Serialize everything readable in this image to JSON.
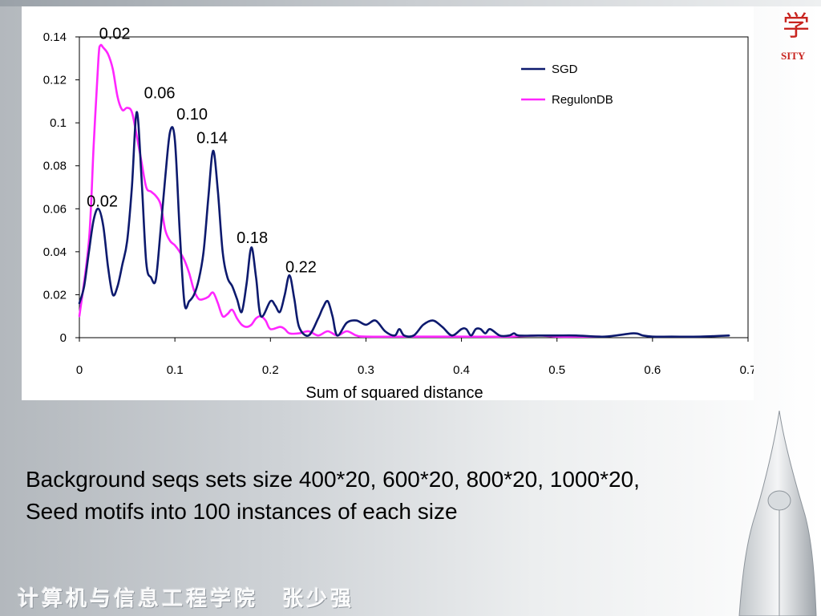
{
  "slide": {
    "body_lines": [
      "Background seqs sets size 400*20, 600*20, 800*20, 1000*20,",
      "Seed motifs into 100 instances of each size"
    ],
    "footer": "计算机与信息工程学院　张少强",
    "logo_glyph": "学",
    "logo_text": "SITY",
    "accent_color": "#c8241f"
  },
  "chart_data": {
    "type": "line",
    "xlabel": "Sum of squared distance",
    "ylabel": "",
    "xlim": [
      0,
      0.7
    ],
    "ylim": [
      0,
      0.14
    ],
    "xticks": [
      "0",
      "0.1",
      "0.2",
      "0.3",
      "0.4",
      "0.5",
      "0.6",
      "0.7"
    ],
    "yticks": [
      "0",
      "0.02",
      "0.04",
      "0.06",
      "0.08",
      "0.1",
      "0.12",
      "0.14"
    ],
    "legend_position": "top-right",
    "grid": false,
    "series": [
      {
        "name": "SGD",
        "color": "#0d1a6e",
        "points": [
          [
            0,
            0.016
          ],
          [
            0.005,
            0.024
          ],
          [
            0.01,
            0.04
          ],
          [
            0.015,
            0.055
          ],
          [
            0.02,
            0.06
          ],
          [
            0.025,
            0.052
          ],
          [
            0.03,
            0.033
          ],
          [
            0.035,
            0.02
          ],
          [
            0.04,
            0.024
          ],
          [
            0.045,
            0.034
          ],
          [
            0.05,
            0.045
          ],
          [
            0.055,
            0.07
          ],
          [
            0.06,
            0.105
          ],
          [
            0.065,
            0.075
          ],
          [
            0.07,
            0.035
          ],
          [
            0.075,
            0.028
          ],
          [
            0.08,
            0.027
          ],
          [
            0.085,
            0.05
          ],
          [
            0.09,
            0.075
          ],
          [
            0.095,
            0.096
          ],
          [
            0.1,
            0.092
          ],
          [
            0.105,
            0.05
          ],
          [
            0.11,
            0.016
          ],
          [
            0.115,
            0.017
          ],
          [
            0.12,
            0.02
          ],
          [
            0.125,
            0.027
          ],
          [
            0.13,
            0.04
          ],
          [
            0.135,
            0.065
          ],
          [
            0.14,
            0.087
          ],
          [
            0.145,
            0.068
          ],
          [
            0.15,
            0.04
          ],
          [
            0.155,
            0.028
          ],
          [
            0.16,
            0.024
          ],
          [
            0.165,
            0.018
          ],
          [
            0.17,
            0.012
          ],
          [
            0.175,
            0.025
          ],
          [
            0.18,
            0.042
          ],
          [
            0.185,
            0.028
          ],
          [
            0.19,
            0.01
          ],
          [
            0.2,
            0.017
          ],
          [
            0.205,
            0.015
          ],
          [
            0.21,
            0.012
          ],
          [
            0.215,
            0.02
          ],
          [
            0.22,
            0.029
          ],
          [
            0.225,
            0.018
          ],
          [
            0.23,
            0.005
          ],
          [
            0.24,
            0.001
          ],
          [
            0.25,
            0.009
          ],
          [
            0.255,
            0.014
          ],
          [
            0.26,
            0.017
          ],
          [
            0.265,
            0.01
          ],
          [
            0.27,
            0.001
          ],
          [
            0.28,
            0.007
          ],
          [
            0.29,
            0.008
          ],
          [
            0.3,
            0.006
          ],
          [
            0.31,
            0.008
          ],
          [
            0.32,
            0.003
          ],
          [
            0.33,
            0.001
          ],
          [
            0.335,
            0.004
          ],
          [
            0.34,
            0.001
          ],
          [
            0.35,
            0.001
          ],
          [
            0.36,
            0.006
          ],
          [
            0.37,
            0.008
          ],
          [
            0.38,
            0.005
          ],
          [
            0.39,
            0.001
          ],
          [
            0.4,
            0.004
          ],
          [
            0.405,
            0.004
          ],
          [
            0.41,
            0.001
          ],
          [
            0.415,
            0.004
          ],
          [
            0.42,
            0.004
          ],
          [
            0.425,
            0.002
          ],
          [
            0.43,
            0.004
          ],
          [
            0.44,
            0.001
          ],
          [
            0.45,
            0.001
          ],
          [
            0.455,
            0.002
          ],
          [
            0.46,
            0.001
          ],
          [
            0.48,
            0.001
          ],
          [
            0.5,
            0.001
          ],
          [
            0.52,
            0.001
          ],
          [
            0.55,
            0.0005
          ],
          [
            0.58,
            0.002
          ],
          [
            0.59,
            0.001
          ],
          [
            0.6,
            0.0005
          ],
          [
            0.62,
            0.0005
          ],
          [
            0.65,
            0.0005
          ],
          [
            0.68,
            0.001
          ]
        ]
      },
      {
        "name": "RegulonDB",
        "color": "#ff26ff",
        "points": [
          [
            0,
            0.01
          ],
          [
            0.01,
            0.045
          ],
          [
            0.015,
            0.09
          ],
          [
            0.02,
            0.13
          ],
          [
            0.022,
            0.136
          ],
          [
            0.025,
            0.135
          ],
          [
            0.03,
            0.132
          ],
          [
            0.035,
            0.125
          ],
          [
            0.04,
            0.112
          ],
          [
            0.045,
            0.106
          ],
          [
            0.05,
            0.107
          ],
          [
            0.055,
            0.105
          ],
          [
            0.06,
            0.094
          ],
          [
            0.065,
            0.082
          ],
          [
            0.07,
            0.07
          ],
          [
            0.075,
            0.068
          ],
          [
            0.08,
            0.066
          ],
          [
            0.085,
            0.062
          ],
          [
            0.09,
            0.05
          ],
          [
            0.095,
            0.045
          ],
          [
            0.1,
            0.043
          ],
          [
            0.105,
            0.04
          ],
          [
            0.11,
            0.036
          ],
          [
            0.115,
            0.03
          ],
          [
            0.12,
            0.022
          ],
          [
            0.125,
            0.018
          ],
          [
            0.13,
            0.018
          ],
          [
            0.135,
            0.019
          ],
          [
            0.14,
            0.021
          ],
          [
            0.145,
            0.016
          ],
          [
            0.15,
            0.01
          ],
          [
            0.155,
            0.011
          ],
          [
            0.16,
            0.013
          ],
          [
            0.165,
            0.009
          ],
          [
            0.17,
            0.006
          ],
          [
            0.175,
            0.005
          ],
          [
            0.18,
            0.006
          ],
          [
            0.185,
            0.009
          ],
          [
            0.19,
            0.01
          ],
          [
            0.195,
            0.008
          ],
          [
            0.2,
            0.004
          ],
          [
            0.21,
            0.005
          ],
          [
            0.215,
            0.004
          ],
          [
            0.22,
            0.002
          ],
          [
            0.23,
            0.002
          ],
          [
            0.24,
            0.003
          ],
          [
            0.25,
            0.001
          ],
          [
            0.26,
            0.003
          ],
          [
            0.27,
            0.001
          ],
          [
            0.28,
            0.003
          ],
          [
            0.29,
            0.001
          ],
          [
            0.3,
            0.0005
          ],
          [
            0.35,
            0.0005
          ],
          [
            0.4,
            0.0005
          ],
          [
            0.45,
            0.0005
          ],
          [
            0.48,
            0.001
          ],
          [
            0.5,
            0.0005
          ],
          [
            0.53,
            0.0005
          ],
          [
            0.545,
            0.0005
          ]
        ]
      }
    ],
    "annotations": [
      {
        "text": "0.02",
        "x": 0.037,
        "y": 0.139
      },
      {
        "text": "0.06",
        "x": 0.084,
        "y": 0.1115
      },
      {
        "text": "0.10",
        "x": 0.118,
        "y": 0.1015
      },
      {
        "text": "0.14",
        "x": 0.139,
        "y": 0.0905
      },
      {
        "text": "0.02",
        "x": 0.024,
        "y": 0.061
      },
      {
        "text": "0.18",
        "x": 0.181,
        "y": 0.044
      },
      {
        "text": "0.22",
        "x": 0.232,
        "y": 0.0305
      }
    ]
  }
}
